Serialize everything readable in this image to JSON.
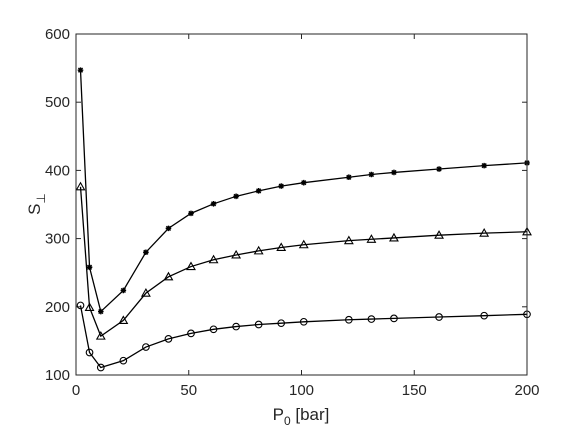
{
  "chart_data": {
    "type": "line",
    "xlabel": "P",
    "xlabel_sub": "0",
    "xlabel_unit": " [bar]",
    "ylabel": "S",
    "ylabel_sub": "⊥",
    "xlim": [
      0,
      200
    ],
    "ylim": [
      100,
      600
    ],
    "xticks": [
      0,
      50,
      100,
      150,
      200
    ],
    "yticks": [
      100,
      200,
      300,
      400,
      500,
      600
    ],
    "grid": false,
    "legend": "none",
    "line_color": "#000000",
    "series": [
      {
        "marker": "star",
        "x": [
          2,
          6,
          11,
          21,
          31,
          41,
          51,
          61,
          71,
          81,
          91,
          101,
          121,
          131,
          141,
          161,
          181,
          200
        ],
        "y": [
          547,
          258,
          193,
          224,
          280,
          315,
          337,
          351,
          362,
          370,
          377,
          382,
          390,
          394,
          397,
          402,
          407,
          411
        ]
      },
      {
        "marker": "triangle",
        "x": [
          2,
          6,
          11,
          21,
          31,
          41,
          51,
          61,
          71,
          81,
          91,
          101,
          121,
          131,
          141,
          161,
          181,
          200
        ],
        "y": [
          376,
          199,
          157,
          180,
          220,
          244,
          259,
          269,
          276,
          282,
          287,
          291,
          297,
          299,
          301,
          305,
          308,
          310
        ]
      },
      {
        "marker": "circle",
        "x": [
          2,
          6,
          11,
          21,
          31,
          41,
          51,
          61,
          71,
          81,
          91,
          101,
          121,
          131,
          141,
          161,
          181,
          200
        ],
        "y": [
          202,
          133,
          111,
          121,
          141,
          153,
          161,
          167,
          171,
          174,
          176,
          178,
          181,
          182,
          183,
          185,
          187,
          189
        ]
      }
    ]
  }
}
